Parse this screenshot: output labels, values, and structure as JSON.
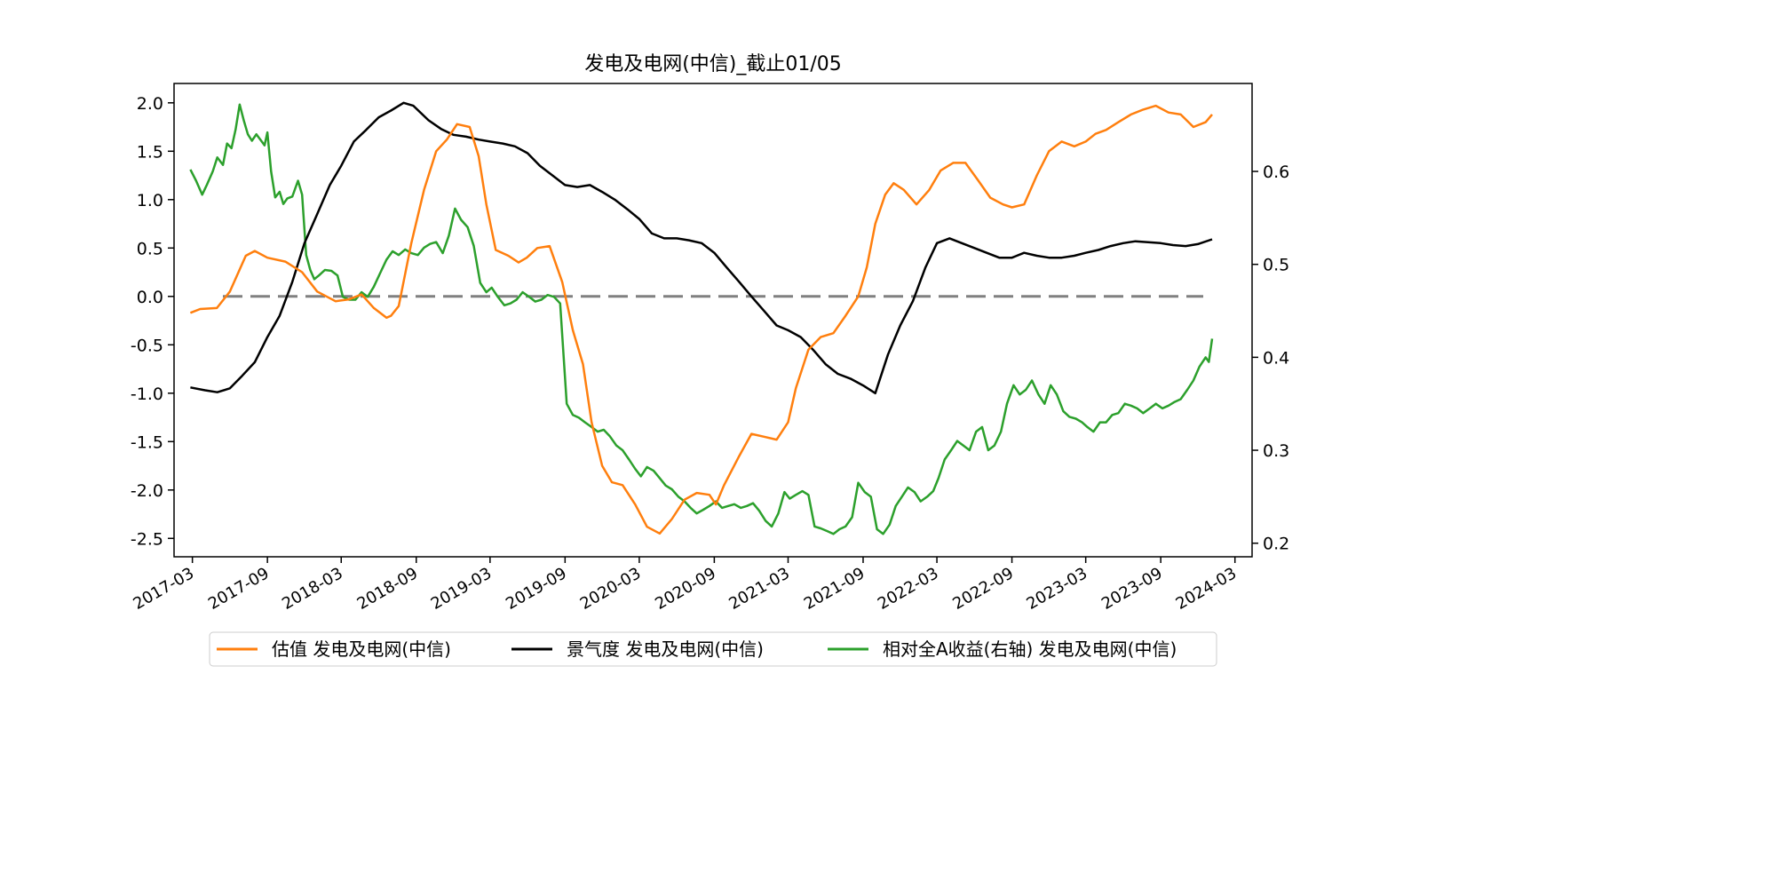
{
  "chart_data": {
    "type": "line",
    "title": "发电及电网(中信)_截止01/05",
    "xlabel": "",
    "ylabel_left": "",
    "ylabel_right": "",
    "x_range": [
      "2017-01-15",
      "2024-04-12"
    ],
    "ylim_left": [
      -2.69,
      2.2
    ],
    "ylim_right": [
      0.1854,
      0.6946
    ],
    "x_ticks": [
      "2017-03",
      "2017-09",
      "2018-03",
      "2018-09",
      "2019-03",
      "2019-09",
      "2020-03",
      "2020-09",
      "2021-03",
      "2021-09",
      "2022-03",
      "2022-09",
      "2023-03",
      "2023-09",
      "2024-03"
    ],
    "y_ticks_left": [
      "2.0",
      "1.5",
      "1.0",
      "0.5",
      "0.0",
      "-0.5",
      "-1.0",
      "-1.5",
      "-2.0",
      "-2.5"
    ],
    "y_ticks_right": [
      "0.6",
      "0.5",
      "0.4",
      "0.3",
      "0.2"
    ],
    "grid": false,
    "legend_position": "bottom-center",
    "reference_line": {
      "y": 0,
      "axis": "left",
      "style": "dashed",
      "color": "#808080"
    },
    "series": [
      {
        "name": "估值 发电及电网(中信)",
        "axis": "left",
        "color": "#ff7f0e",
        "x": [
          "2017-02-24",
          "2017-03-20",
          "2017-04-30",
          "2017-06-01",
          "2017-07-10",
          "2017-08-01",
          "2017-09-01",
          "2017-10-15",
          "2017-11-25",
          "2018-01-01",
          "2018-02-15",
          "2018-03-20",
          "2018-04-20",
          "2018-05-20",
          "2018-06-20",
          "2018-07-01",
          "2018-07-20",
          "2018-08-20",
          "2018-09-20",
          "2018-10-20",
          "2018-11-15",
          "2018-12-10",
          "2019-01-10",
          "2019-02-01",
          "2019-02-20",
          "2019-03-15",
          "2019-04-15",
          "2019-05-10",
          "2019-05-30",
          "2019-06-25",
          "2019-07-25",
          "2019-08-25",
          "2019-09-20",
          "2019-10-15",
          "2019-11-05",
          "2019-12-01",
          "2019-12-25",
          "2020-01-20",
          "2020-02-20",
          "2020-03-20",
          "2020-04-20",
          "2020-05-20",
          "2020-06-20",
          "2020-07-20",
          "2020-08-20",
          "2020-09-05",
          "2020-09-25",
          "2020-11-01",
          "2020-12-01",
          "2021-01-01",
          "2021-02-01",
          "2021-03-01",
          "2021-03-20",
          "2021-04-20",
          "2021-05-20",
          "2021-06-20",
          "2021-07-20",
          "2021-08-20",
          "2021-09-10",
          "2021-10-01",
          "2021-10-25",
          "2021-11-15",
          "2021-12-10",
          "2022-01-10",
          "2022-02-10",
          "2022-03-10",
          "2022-04-10",
          "2022-05-10",
          "2022-06-10",
          "2022-07-10",
          "2022-08-10",
          "2022-09-01",
          "2022-10-01",
          "2022-11-01",
          "2022-12-01",
          "2023-01-01",
          "2023-02-01",
          "2023-03-01",
          "2023-03-25",
          "2023-04-20",
          "2023-05-20",
          "2023-06-20",
          "2023-07-20",
          "2023-08-20",
          "2023-09-20",
          "2023-10-20",
          "2023-11-20",
          "2023-12-20",
          "2024-01-05"
        ],
        "y": [
          -0.17,
          -0.13,
          -0.12,
          0.05,
          0.42,
          0.47,
          0.4,
          0.36,
          0.25,
          0.05,
          -0.05,
          -0.03,
          0.02,
          -0.12,
          -0.22,
          -0.2,
          -0.1,
          0.55,
          1.1,
          1.5,
          1.62,
          1.78,
          1.75,
          1.45,
          0.95,
          0.48,
          0.42,
          0.35,
          0.4,
          0.5,
          0.52,
          0.15,
          -0.35,
          -0.7,
          -1.3,
          -1.75,
          -1.92,
          -1.95,
          -2.15,
          -2.38,
          -2.45,
          -2.3,
          -2.1,
          -2.03,
          -2.05,
          -2.15,
          -1.95,
          -1.65,
          -1.42,
          -1.45,
          -1.48,
          -1.3,
          -0.95,
          -0.55,
          -0.42,
          -0.38,
          -0.2,
          0.0,
          0.3,
          0.75,
          1.05,
          1.17,
          1.1,
          0.95,
          1.1,
          1.3,
          1.38,
          1.38,
          1.2,
          1.02,
          0.95,
          0.92,
          0.95,
          1.25,
          1.5,
          1.6,
          1.55,
          1.6,
          1.68,
          1.72,
          1.8,
          1.88,
          1.93,
          1.97,
          1.9,
          1.88,
          1.75,
          1.8,
          1.88
        ]
      },
      {
        "name": "景气度 发电及电网(中信)",
        "axis": "left",
        "color": "#000000",
        "x": [
          "2017-02-24",
          "2017-04-01",
          "2017-05-01",
          "2017-06-01",
          "2017-07-01",
          "2017-08-01",
          "2017-09-01",
          "2017-10-01",
          "2017-11-01",
          "2017-12-01",
          "2018-01-01",
          "2018-02-01",
          "2018-03-01",
          "2018-04-01",
          "2018-05-01",
          "2018-06-01",
          "2018-07-01",
          "2018-08-01",
          "2018-08-25",
          "2018-10-01",
          "2018-11-01",
          "2018-12-01",
          "2019-01-01",
          "2019-02-01",
          "2019-03-01",
          "2019-04-01",
          "2019-05-01",
          "2019-06-01",
          "2019-07-01",
          "2019-08-01",
          "2019-09-01",
          "2019-10-01",
          "2019-11-01",
          "2019-12-01",
          "2020-01-01",
          "2020-02-01",
          "2020-03-01",
          "2020-04-01",
          "2020-05-01",
          "2020-06-01",
          "2020-07-01",
          "2020-08-01",
          "2020-09-01",
          "2020-10-01",
          "2020-11-01",
          "2020-12-01",
          "2021-01-01",
          "2021-02-01",
          "2021-03-01",
          "2021-04-01",
          "2021-05-01",
          "2021-06-01",
          "2021-07-01",
          "2021-08-01",
          "2021-09-01",
          "2021-10-01",
          "2021-11-01",
          "2021-12-01",
          "2022-01-01",
          "2022-02-01",
          "2022-03-01",
          "2022-04-01",
          "2022-05-01",
          "2022-06-01",
          "2022-07-01",
          "2022-08-01",
          "2022-09-01",
          "2022-10-01",
          "2022-11-01",
          "2022-12-01",
          "2023-01-01",
          "2023-02-01",
          "2023-03-01",
          "2023-04-01",
          "2023-05-01",
          "2023-06-01",
          "2023-07-01",
          "2023-08-01",
          "2023-09-01",
          "2023-10-01",
          "2023-11-01",
          "2023-12-01",
          "2024-01-05"
        ],
        "y": [
          -0.94,
          -0.97,
          -0.99,
          -0.95,
          -0.82,
          -0.68,
          -0.42,
          -0.2,
          0.15,
          0.55,
          0.85,
          1.15,
          1.35,
          1.6,
          1.72,
          1.85,
          1.92,
          2.0,
          1.97,
          1.82,
          1.73,
          1.67,
          1.65,
          1.62,
          1.6,
          1.58,
          1.55,
          1.48,
          1.35,
          1.25,
          1.15,
          1.13,
          1.15,
          1.08,
          1.0,
          0.9,
          0.8,
          0.65,
          0.6,
          0.6,
          0.58,
          0.55,
          0.45,
          0.3,
          0.15,
          0.0,
          -0.15,
          -0.3,
          -0.35,
          -0.42,
          -0.55,
          -0.7,
          -0.8,
          -0.85,
          -0.92,
          -1.0,
          -0.6,
          -0.3,
          -0.05,
          0.3,
          0.55,
          0.6,
          0.55,
          0.5,
          0.45,
          0.4,
          0.4,
          0.45,
          0.42,
          0.4,
          0.4,
          0.42,
          0.45,
          0.48,
          0.52,
          0.55,
          0.57,
          0.56,
          0.55,
          0.53,
          0.52,
          0.54,
          0.59
        ]
      },
      {
        "name": "相对全A收益(右轴) 发电及电网(中信)",
        "axis": "right",
        "color": "#2ca02c",
        "x": [
          "2017-02-24",
          "2017-03-10",
          "2017-03-25",
          "2017-04-05",
          "2017-04-20",
          "2017-05-01",
          "2017-05-15",
          "2017-05-25",
          "2017-06-05",
          "2017-06-15",
          "2017-06-25",
          "2017-07-05",
          "2017-07-15",
          "2017-07-25",
          "2017-08-05",
          "2017-08-15",
          "2017-08-25",
          "2017-09-01",
          "2017-09-10",
          "2017-09-20",
          "2017-10-01",
          "2017-10-10",
          "2017-10-20",
          "2017-11-01",
          "2017-11-15",
          "2017-11-25",
          "2017-12-05",
          "2017-12-15",
          "2017-12-25",
          "2018-01-05",
          "2018-01-20",
          "2018-02-05",
          "2018-02-20",
          "2018-03-05",
          "2018-03-20",
          "2018-04-05",
          "2018-04-20",
          "2018-05-05",
          "2018-05-20",
          "2018-06-05",
          "2018-06-20",
          "2018-07-05",
          "2018-07-20",
          "2018-08-05",
          "2018-08-20",
          "2018-09-05",
          "2018-09-20",
          "2018-10-05",
          "2018-10-20",
          "2018-11-05",
          "2018-11-20",
          "2018-12-05",
          "2018-12-20",
          "2019-01-05",
          "2019-01-20",
          "2019-02-05",
          "2019-02-20",
          "2019-03-05",
          "2019-03-20",
          "2019-04-05",
          "2019-04-20",
          "2019-05-05",
          "2019-05-20",
          "2019-06-05",
          "2019-06-20",
          "2019-07-05",
          "2019-07-20",
          "2019-08-05",
          "2019-08-20",
          "2019-09-05",
          "2019-09-20",
          "2019-10-05",
          "2019-10-20",
          "2019-11-05",
          "2019-11-20",
          "2019-12-05",
          "2019-12-20",
          "2020-01-05",
          "2020-01-20",
          "2020-02-05",
          "2020-02-20",
          "2020-03-05",
          "2020-03-20",
          "2020-04-05",
          "2020-04-20",
          "2020-05-05",
          "2020-05-20",
          "2020-06-05",
          "2020-06-20",
          "2020-07-05",
          "2020-07-20",
          "2020-08-05",
          "2020-08-20",
          "2020-09-05",
          "2020-09-20",
          "2020-10-05",
          "2020-10-20",
          "2020-11-05",
          "2020-11-20",
          "2020-12-05",
          "2020-12-20",
          "2021-01-05",
          "2021-01-20",
          "2021-02-05",
          "2021-02-20",
          "2021-03-05",
          "2021-03-20",
          "2021-04-05",
          "2021-04-20",
          "2021-05-05",
          "2021-05-20",
          "2021-06-05",
          "2021-06-20",
          "2021-07-05",
          "2021-07-20",
          "2021-08-05",
          "2021-08-20",
          "2021-09-05",
          "2021-09-20",
          "2021-10-05",
          "2021-10-20",
          "2021-11-05",
          "2021-11-20",
          "2021-12-05",
          "2021-12-20",
          "2022-01-05",
          "2022-01-20",
          "2022-02-05",
          "2022-02-20",
          "2022-03-05",
          "2022-03-20",
          "2022-04-05",
          "2022-04-20",
          "2022-05-05",
          "2022-05-20",
          "2022-06-05",
          "2022-06-20",
          "2022-07-05",
          "2022-07-20",
          "2022-08-05",
          "2022-08-20",
          "2022-09-05",
          "2022-09-20",
          "2022-10-05",
          "2022-10-20",
          "2022-11-05",
          "2022-11-20",
          "2022-12-05",
          "2022-12-20",
          "2023-01-05",
          "2023-01-20",
          "2023-02-05",
          "2023-02-20",
          "2023-03-05",
          "2023-03-20",
          "2023-04-05",
          "2023-04-20",
          "2023-05-05",
          "2023-05-20",
          "2023-06-05",
          "2023-06-20",
          "2023-07-05",
          "2023-07-20",
          "2023-08-05",
          "2023-08-20",
          "2023-09-05",
          "2023-09-20",
          "2023-10-05",
          "2023-10-20",
          "2023-11-05",
          "2023-11-20",
          "2023-12-05",
          "2023-12-20",
          "2023-12-28",
          "2024-01-05"
        ],
        "y": [
          0.602,
          0.59,
          0.575,
          0.585,
          0.6,
          0.615,
          0.607,
          0.63,
          0.625,
          0.645,
          0.672,
          0.655,
          0.64,
          0.633,
          0.64,
          0.634,
          0.628,
          0.642,
          0.6,
          0.572,
          0.578,
          0.565,
          0.571,
          0.573,
          0.59,
          0.575,
          0.51,
          0.494,
          0.484,
          0.488,
          0.494,
          0.493,
          0.488,
          0.465,
          0.462,
          0.462,
          0.47,
          0.465,
          0.476,
          0.491,
          0.505,
          0.514,
          0.51,
          0.516,
          0.512,
          0.51,
          0.518,
          0.522,
          0.524,
          0.512,
          0.531,
          0.56,
          0.548,
          0.54,
          0.52,
          0.48,
          0.47,
          0.475,
          0.465,
          0.456,
          0.458,
          0.462,
          0.47,
          0.465,
          0.46,
          0.462,
          0.467,
          0.465,
          0.458,
          0.35,
          0.338,
          0.335,
          0.33,
          0.325,
          0.32,
          0.322,
          0.315,
          0.305,
          0.3,
          0.29,
          0.28,
          0.272,
          0.282,
          0.278,
          0.27,
          0.262,
          0.258,
          0.25,
          0.245,
          0.238,
          0.232,
          0.236,
          0.24,
          0.245,
          0.238,
          0.24,
          0.242,
          0.238,
          0.24,
          0.243,
          0.235,
          0.224,
          0.218,
          0.232,
          0.255,
          0.248,
          0.252,
          0.256,
          0.252,
          0.218,
          0.216,
          0.213,
          0.21,
          0.215,
          0.218,
          0.228,
          0.265,
          0.255,
          0.25,
          0.215,
          0.21,
          0.22,
          0.24,
          0.25,
          0.26,
          0.255,
          0.245,
          0.25,
          0.256,
          0.27,
          0.29,
          0.3,
          0.31,
          0.305,
          0.3,
          0.32,
          0.325,
          0.3,
          0.305,
          0.32,
          0.35,
          0.37,
          0.36,
          0.365,
          0.375,
          0.36,
          0.35,
          0.37,
          0.36,
          0.342,
          0.336,
          0.334,
          0.33,
          0.325,
          0.32,
          0.33,
          0.33,
          0.338,
          0.34,
          0.35,
          0.348,
          0.345,
          0.34,
          0.345,
          0.35,
          0.345,
          0.348,
          0.352,
          0.355,
          0.365,
          0.375,
          0.39,
          0.4,
          0.395,
          0.42
        ]
      }
    ]
  }
}
